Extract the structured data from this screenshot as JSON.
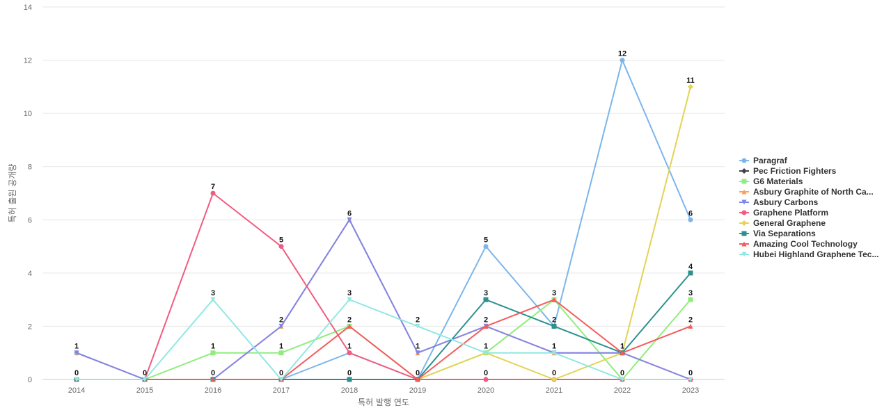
{
  "chart_data": {
    "type": "line",
    "title": "",
    "xlabel": "특허 발행 연도",
    "ylabel": "특허 출원 공개량",
    "x": [
      "2014",
      "2015",
      "2016",
      "2017",
      "2018",
      "2019",
      "2020",
      "2021",
      "2022",
      "2023"
    ],
    "ylim": [
      0,
      14
    ],
    "yticks": [
      0,
      2,
      4,
      6,
      8,
      10,
      12,
      14
    ],
    "grid": true,
    "legend_position": "right",
    "series": [
      {
        "name": "Paragraf",
        "values": [
          1,
          0,
          0,
          0,
          1,
          0,
          5,
          2,
          12,
          6
        ],
        "color": "#7cb5ec",
        "marker": "circle"
      },
      {
        "name": "Pec Friction Fighters",
        "values": [
          0,
          0,
          0,
          0,
          0,
          0,
          0,
          0,
          0,
          0
        ],
        "color": "#434348",
        "marker": "diamond"
      },
      {
        "name": "G6 Materials",
        "values": [
          0,
          0,
          1,
          1,
          2,
          0,
          1,
          3,
          0,
          3
        ],
        "color": "#90ed7d",
        "marker": "square"
      },
      {
        "name": "Asbury Graphite of North Ca...",
        "values": [
          1,
          0,
          0,
          2,
          6,
          1,
          2,
          1,
          1,
          0
        ],
        "color": "#f7a35c",
        "marker": "triangle"
      },
      {
        "name": "Asbury Carbons",
        "values": [
          1,
          0,
          0,
          2,
          6,
          1,
          2,
          1,
          1,
          0
        ],
        "color": "#8085e9",
        "marker": "triangle-down"
      },
      {
        "name": "Graphene Platform",
        "values": [
          0,
          0,
          7,
          5,
          1,
          0,
          0,
          0,
          0,
          0
        ],
        "color": "#f15c80",
        "marker": "circle"
      },
      {
        "name": "General Graphene",
        "values": [
          0,
          0,
          0,
          0,
          0,
          0,
          1,
          0,
          1,
          11
        ],
        "color": "#e4d354",
        "marker": "diamond"
      },
      {
        "name": "Via Separations",
        "values": [
          0,
          0,
          0,
          0,
          0,
          0,
          3,
          2,
          1,
          4
        ],
        "color": "#2b908f",
        "marker": "square"
      },
      {
        "name": "Amazing Cool Technology",
        "values": [
          0,
          0,
          0,
          0,
          2,
          0,
          2,
          3,
          1,
          2
        ],
        "color": "#f45b5b",
        "marker": "triangle"
      },
      {
        "name": "Hubei Highland Graphene Tec...",
        "values": [
          0,
          0,
          3,
          0,
          3,
          2,
          1,
          1,
          0,
          0
        ],
        "color": "#91e8e1",
        "marker": "triangle-down"
      }
    ],
    "data_labels": [
      {
        "x": "2014",
        "value": 1
      },
      {
        "x": "2014",
        "value": 0
      },
      {
        "x": "2015",
        "value": 0
      },
      {
        "x": "2016",
        "value": 7
      },
      {
        "x": "2016",
        "value": 3
      },
      {
        "x": "2016",
        "value": 1
      },
      {
        "x": "2016",
        "value": 0
      },
      {
        "x": "2017",
        "value": 5
      },
      {
        "x": "2017",
        "value": 2
      },
      {
        "x": "2017",
        "value": 1
      },
      {
        "x": "2017",
        "value": 0
      },
      {
        "x": "2018",
        "value": 6
      },
      {
        "x": "2018",
        "value": 3
      },
      {
        "x": "2018",
        "value": 2
      },
      {
        "x": "2018",
        "value": 1
      },
      {
        "x": "2018",
        "value": 0
      },
      {
        "x": "2019",
        "value": 2
      },
      {
        "x": "2019",
        "value": 1
      },
      {
        "x": "2019",
        "value": 0
      },
      {
        "x": "2020",
        "value": 5
      },
      {
        "x": "2020",
        "value": 3
      },
      {
        "x": "2020",
        "value": 2
      },
      {
        "x": "2020",
        "value": 1
      },
      {
        "x": "2020",
        "value": 0
      },
      {
        "x": "2021",
        "value": 3
      },
      {
        "x": "2021",
        "value": 2
      },
      {
        "x": "2021",
        "value": 1
      },
      {
        "x": "2021",
        "value": 0
      },
      {
        "x": "2022",
        "value": 12
      },
      {
        "x": "2022",
        "value": 1
      },
      {
        "x": "2022",
        "value": 0
      },
      {
        "x": "2023",
        "value": 11
      },
      {
        "x": "2023",
        "value": 6
      },
      {
        "x": "2023",
        "value": 4
      },
      {
        "x": "2023",
        "value": 3
      },
      {
        "x": "2023",
        "value": 2
      },
      {
        "x": "2023",
        "value": 0
      }
    ]
  }
}
